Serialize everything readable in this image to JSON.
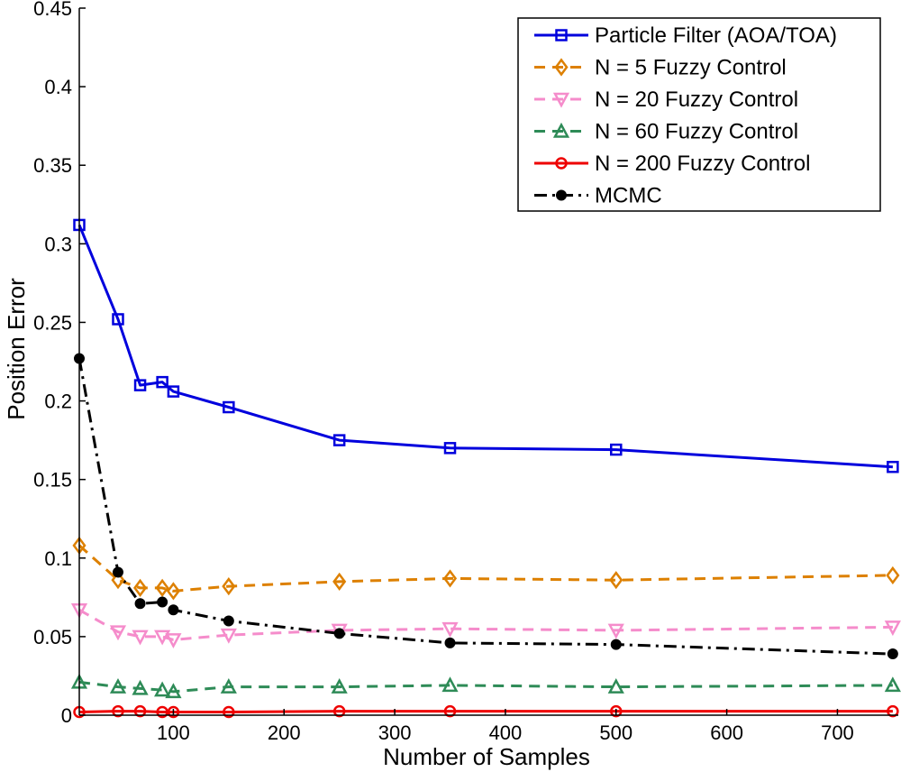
{
  "chart_data": {
    "type": "line",
    "title": "",
    "xlabel": "Number of Samples",
    "ylabel": "Position Error",
    "xlim": [
      15,
      755
    ],
    "ylim": [
      0,
      0.45
    ],
    "xticks": [
      100,
      200,
      300,
      400,
      500,
      600,
      700
    ],
    "yticks": [
      0,
      0.05,
      0.1,
      0.15,
      0.2,
      0.25,
      0.3,
      0.35,
      0.4,
      0.45
    ],
    "grid": false,
    "legend_position": "top-right",
    "x": [
      15,
      50,
      70,
      90,
      100,
      150,
      250,
      350,
      500,
      750
    ],
    "series": [
      {
        "name": "Particle Filter (AOA/TOA)",
        "color": "#0000dd",
        "line_style": "solid",
        "marker": "square",
        "values": [
          0.312,
          0.252,
          0.21,
          0.212,
          0.206,
          0.196,
          0.175,
          0.17,
          0.169,
          0.158
        ]
      },
      {
        "name": "N = 5 Fuzzy Control",
        "color": "#dd8000",
        "line_style": "dashed",
        "marker": "diamond",
        "values": [
          0.108,
          0.086,
          0.081,
          0.081,
          0.079,
          0.082,
          0.085,
          0.087,
          0.086,
          0.089
        ]
      },
      {
        "name": "N = 20 Fuzzy Control",
        "color": "#f58ccb",
        "line_style": "dashed",
        "marker": "triangle-down",
        "values": [
          0.067,
          0.053,
          0.05,
          0.05,
          0.048,
          0.051,
          0.054,
          0.055,
          0.054,
          0.056
        ]
      },
      {
        "name": "N = 60 Fuzzy Control",
        "color": "#2e8b57",
        "line_style": "dashed",
        "marker": "triangle-up",
        "values": [
          0.021,
          0.018,
          0.017,
          0.016,
          0.015,
          0.018,
          0.018,
          0.019,
          0.018,
          0.019
        ]
      },
      {
        "name": "N = 200 Fuzzy Control",
        "color": "#ee0000",
        "line_style": "solid",
        "marker": "circle",
        "values": [
          0.002,
          0.0025,
          0.0025,
          0.002,
          0.002,
          0.002,
          0.0025,
          0.0025,
          0.0025,
          0.0025
        ]
      },
      {
        "name": "MCMC",
        "color": "#000000",
        "line_style": "dashdot",
        "marker": "dot",
        "values": [
          0.227,
          0.091,
          0.071,
          0.072,
          0.067,
          0.06,
          0.052,
          0.046,
          0.045,
          0.039
        ]
      }
    ]
  }
}
